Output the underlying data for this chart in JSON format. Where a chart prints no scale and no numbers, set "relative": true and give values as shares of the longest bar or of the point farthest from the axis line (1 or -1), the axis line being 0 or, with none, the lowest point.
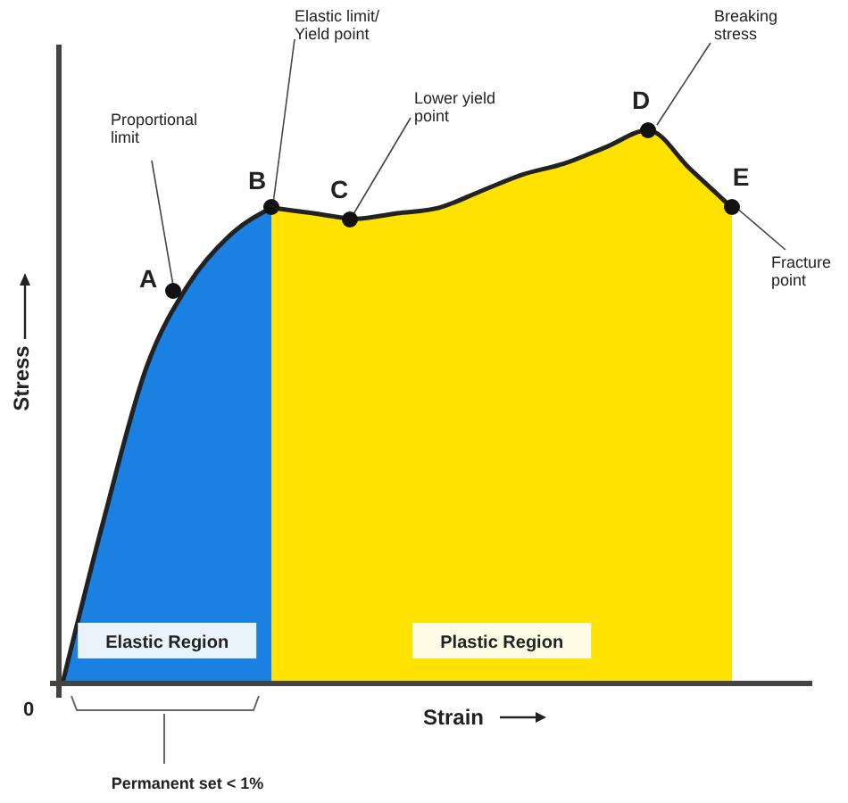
{
  "chart_data": {
    "type": "area",
    "relative": true,
    "xlabel": "Strain",
    "ylabel": "Stress",
    "grid": false,
    "categories": [
      null,
      null,
      null,
      null,
      null,
      null,
      null,
      null,
      null,
      null,
      null,
      null,
      null,
      null,
      null,
      null,
      null
    ],
    "series": [
      {
        "name": "Elastic Region",
        "color": "#1a80e2",
        "values": [
          0,
          0.3,
          0.57,
          0.72,
          0.81,
          0.86,
          null,
          null,
          null,
          null,
          null,
          null,
          null,
          null,
          null,
          null,
          null
        ]
      },
      {
        "name": "Plastic Region",
        "color": "#ffe200",
        "values": [
          null,
          null,
          null,
          null,
          null,
          0.86,
          0.85,
          0.84,
          0.85,
          0.86,
          0.89,
          0.92,
          0.94,
          0.97,
          1,
          0.93,
          0.86
        ]
      }
    ],
    "annotations": [
      "Proportional limit",
      "Elastic limit/ Yield point",
      "Lower yield point",
      "Breaking stress",
      "Fracture point",
      "A",
      "B",
      "C",
      "D",
      "E",
      "0",
      "Permanent set < 1%"
    ]
  }
}
